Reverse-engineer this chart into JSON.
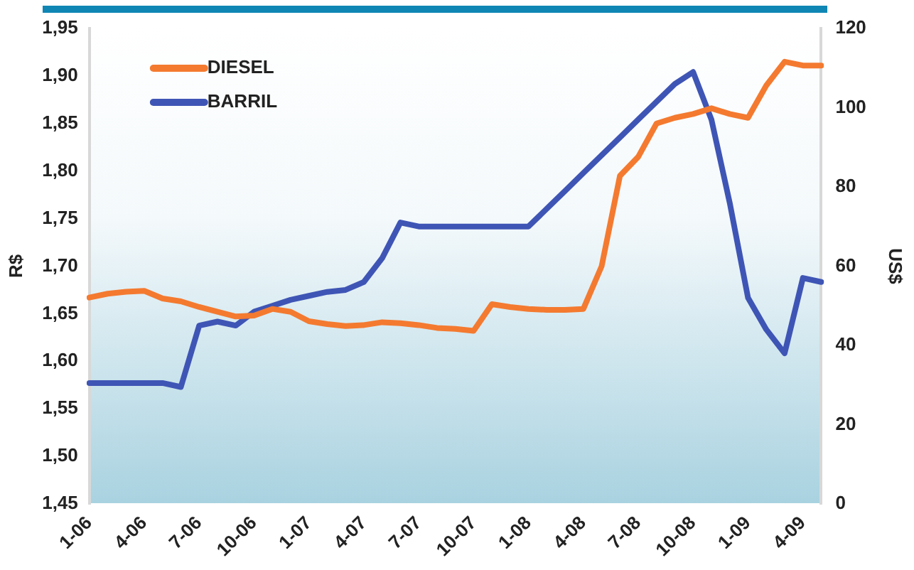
{
  "chart_data": {
    "type": "line",
    "categories": [
      "1-06",
      null,
      null,
      "4-06",
      null,
      null,
      "7-06",
      null,
      null,
      "10-06",
      null,
      null,
      "1-07",
      null,
      null,
      "4-07",
      null,
      null,
      "7-07",
      null,
      null,
      "10-07",
      null,
      null,
      "1-08",
      null,
      null,
      "4-08",
      null,
      null,
      "7-08",
      null,
      null,
      "10-08",
      null,
      null,
      "1-09",
      null,
      null,
      "4-09",
      null
    ],
    "series": [
      {
        "name": "DIESEL",
        "color": "#f47a30",
        "values": [
          1.667,
          1.671,
          1.673,
          1.674,
          1.666,
          1.663,
          1.657,
          1.652,
          1.647,
          1.648,
          1.655,
          1.652,
          1.642,
          1.639,
          1.637,
          1.638,
          1.641,
          1.64,
          1.638,
          1.635,
          1.634,
          1.632,
          1.66,
          1.657,
          1.655,
          1.654,
          1.654,
          1.655,
          1.7,
          1.795,
          1.815,
          1.85,
          1.856,
          1.86,
          1.866,
          1.86,
          1.856,
          1.89,
          1.915,
          1.911,
          1.911
        ]
      },
      {
        "name": "BARRIL",
        "color": "#3f55b5",
        "axis": "y2",
        "values": [
          30.5,
          30.5,
          30.5,
          30.5,
          30.5,
          29.5,
          45,
          46,
          45,
          48.5,
          50,
          51.5,
          52.5,
          53.5,
          54,
          56,
          62,
          71,
          70,
          70,
          70,
          70,
          70,
          70,
          70,
          74.5,
          79,
          83.5,
          88,
          92.5,
          97,
          101.5,
          106,
          109,
          97,
          76,
          52,
          44,
          38,
          57,
          56
        ]
      }
    ],
    "ylabel": "R$",
    "y2label": "US$",
    "ylim": [
      1.45,
      1.95
    ],
    "yticks": [
      {
        "value": 1.45,
        "label": "1,45"
      },
      {
        "value": 1.5,
        "label": "1,50"
      },
      {
        "value": 1.55,
        "label": "1,55"
      },
      {
        "value": 1.6,
        "label": "1,60"
      },
      {
        "value": 1.65,
        "label": "1,65"
      },
      {
        "value": 1.7,
        "label": "1,70"
      },
      {
        "value": 1.75,
        "label": "1,75"
      },
      {
        "value": 1.8,
        "label": "1,80"
      },
      {
        "value": 1.85,
        "label": "1,85"
      },
      {
        "value": 1.9,
        "label": "1,90"
      },
      {
        "value": 1.95,
        "label": "1,95"
      }
    ],
    "y2lim": [
      0,
      120
    ],
    "y2ticks": [
      0,
      20,
      40,
      60,
      80,
      100,
      120
    ],
    "grid": false,
    "legend": "top left",
    "marker": "none",
    "line_style": "solid"
  }
}
